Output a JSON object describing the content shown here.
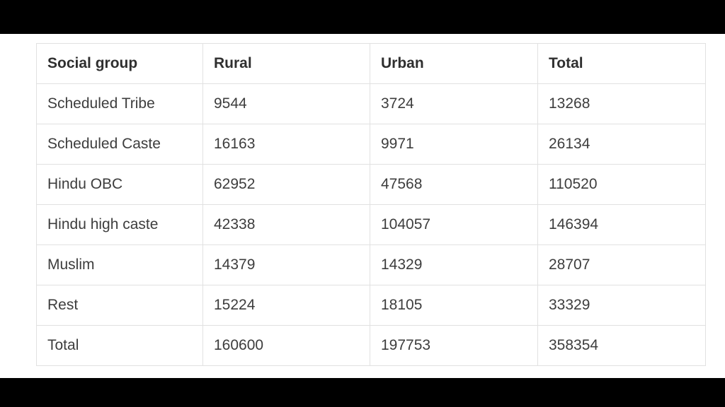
{
  "table": {
    "headers": [
      "Social group",
      "Rural",
      "Urban",
      "Total"
    ],
    "rows": [
      [
        "Scheduled Tribe",
        "9544",
        "3724",
        "13268"
      ],
      [
        "Scheduled Caste",
        "16163",
        "9971",
        "26134"
      ],
      [
        "Hindu OBC",
        "62952",
        "47568",
        "110520"
      ],
      [
        "Hindu high caste",
        "42338",
        "104057",
        "146394"
      ],
      [
        "Muslim",
        "14379",
        "14329",
        "28707"
      ],
      [
        "Rest",
        "15224",
        "18105",
        "33329"
      ],
      [
        "Total",
        "160600",
        "197753",
        "358354"
      ]
    ]
  }
}
